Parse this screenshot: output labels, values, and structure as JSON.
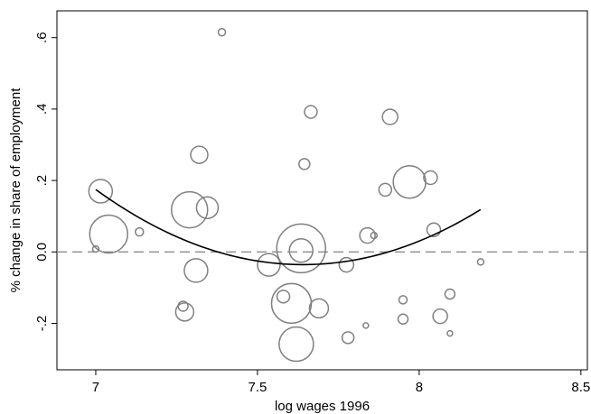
{
  "chart_data": {
    "type": "scatter",
    "title": "",
    "xlabel": "log wages 1996",
    "ylabel": "% change in share of employment",
    "xlim": [
      6.88,
      8.52
    ],
    "ylim": [
      -0.33,
      0.675
    ],
    "x_ticks": [
      {
        "value": 7,
        "label": "7"
      },
      {
        "value": 7.5,
        "label": "7.5"
      },
      {
        "value": 8,
        "label": "8"
      },
      {
        "value": 8.5,
        "label": "8.5"
      }
    ],
    "y_ticks": [
      {
        "value": -0.2,
        "label": "-.2"
      },
      {
        "value": 0,
        "label": "0.0"
      },
      {
        "value": 0.2,
        "label": ".2"
      },
      {
        "value": 0.4,
        "label": ".4"
      },
      {
        "value": 0.6,
        "label": ".6"
      }
    ],
    "reference_line": {
      "y": 0,
      "style": "dashed",
      "color": "#8c8c8c"
    },
    "grid": false,
    "bubble_color": "#808080",
    "line_color": "#000000",
    "points": [
      {
        "x": 7.39,
        "y": 0.615,
        "r": 4
      },
      {
        "x": 7.665,
        "y": 0.392,
        "r": 7
      },
      {
        "x": 7.91,
        "y": 0.378,
        "r": 8.5
      },
      {
        "x": 7.32,
        "y": 0.272,
        "r": 9.5
      },
      {
        "x": 7.645,
        "y": 0.246,
        "r": 6
      },
      {
        "x": 7.015,
        "y": 0.17,
        "r": 13
      },
      {
        "x": 7.97,
        "y": 0.196,
        "r": 18
      },
      {
        "x": 8.035,
        "y": 0.208,
        "r": 7.5
      },
      {
        "x": 7.895,
        "y": 0.174,
        "r": 7
      },
      {
        "x": 7.29,
        "y": 0.118,
        "r": 20
      },
      {
        "x": 7.345,
        "y": 0.124,
        "r": 12
      },
      {
        "x": 7.04,
        "y": 0.05,
        "r": 21
      },
      {
        "x": 7.135,
        "y": 0.056,
        "r": 4.5
      },
      {
        "x": 7.0,
        "y": 0.008,
        "r": 3.5
      },
      {
        "x": 7.635,
        "y": 0.01,
        "r": 27
      },
      {
        "x": 7.635,
        "y": 0.004,
        "r": 13
      },
      {
        "x": 7.84,
        "y": 0.046,
        "r": 8.5
      },
      {
        "x": 7.86,
        "y": 0.046,
        "r": 3.5
      },
      {
        "x": 8.045,
        "y": 0.062,
        "r": 7.5
      },
      {
        "x": 8.19,
        "y": -0.028,
        "r": 3.5
      },
      {
        "x": 7.535,
        "y": -0.036,
        "r": 12.5
      },
      {
        "x": 7.775,
        "y": -0.036,
        "r": 8
      },
      {
        "x": 7.31,
        "y": -0.052,
        "r": 13
      },
      {
        "x": 7.58,
        "y": -0.125,
        "r": 7
      },
      {
        "x": 7.605,
        "y": -0.144,
        "r": 22
      },
      {
        "x": 7.69,
        "y": -0.158,
        "r": 10.5
      },
      {
        "x": 7.27,
        "y": -0.152,
        "r": 5.5
      },
      {
        "x": 7.275,
        "y": -0.168,
        "r": 10
      },
      {
        "x": 7.95,
        "y": -0.134,
        "r": 4.5
      },
      {
        "x": 8.095,
        "y": -0.118,
        "r": 5.5
      },
      {
        "x": 7.95,
        "y": -0.188,
        "r": 5.5
      },
      {
        "x": 8.065,
        "y": -0.18,
        "r": 8
      },
      {
        "x": 7.835,
        "y": -0.206,
        "r": 3
      },
      {
        "x": 8.095,
        "y": -0.228,
        "r": 3
      },
      {
        "x": 7.78,
        "y": -0.24,
        "r": 6.5
      },
      {
        "x": 7.62,
        "y": -0.258,
        "r": 19
      }
    ],
    "fitted_curve": {
      "x_range": [
        7.0,
        8.19
      ],
      "quadratic": {
        "a": 0.5117,
        "b": -7.8198,
        "c": 29.84
      }
    }
  }
}
